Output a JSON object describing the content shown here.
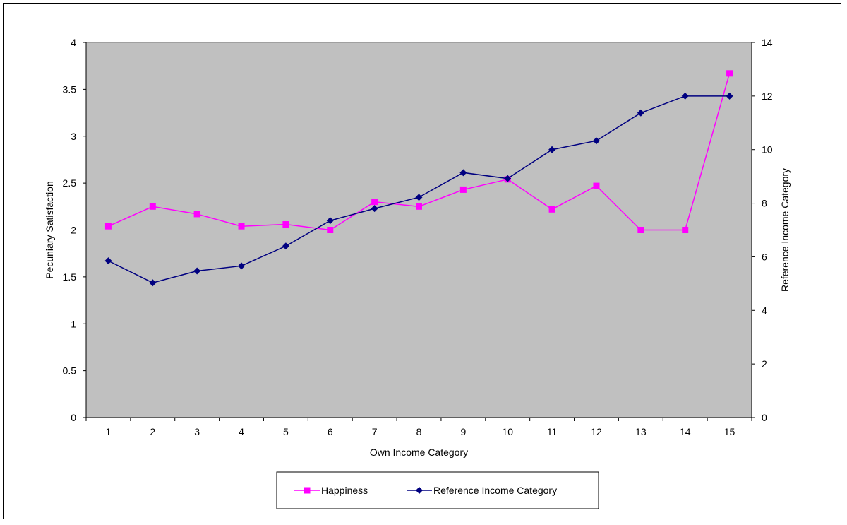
{
  "chart_data": {
    "type": "line",
    "title": "",
    "xlabel": "Own Income Category",
    "ylabel": "Pecuniary Satisfaction",
    "y2label": "Reference Income Category",
    "categories": [
      "1",
      "2",
      "3",
      "4",
      "5",
      "6",
      "7",
      "8",
      "9",
      "10",
      "11",
      "12",
      "13",
      "14",
      "15"
    ],
    "ylim": [
      0,
      4
    ],
    "yticks": [
      "0",
      "0.5",
      "1",
      "1.5",
      "2",
      "2.5",
      "3",
      "3.5",
      "4"
    ],
    "y2lim": [
      0,
      14
    ],
    "y2ticks": [
      "0",
      "2",
      "4",
      "6",
      "8",
      "10",
      "12",
      "14"
    ],
    "grid": false,
    "plot_background": "#c0c0c0",
    "legend_position": "bottom",
    "series": [
      {
        "name": "Happiness",
        "axis": "left",
        "color": "#ff00ff",
        "marker": "square",
        "values": [
          2.04,
          2.25,
          2.17,
          2.04,
          2.06,
          2.0,
          2.3,
          2.25,
          2.43,
          2.54,
          2.22,
          2.47,
          2.0,
          2.0,
          3.67
        ]
      },
      {
        "name": "Reference Income Category",
        "axis": "right",
        "color": "#000080",
        "marker": "diamond",
        "values": [
          5.85,
          5.03,
          5.47,
          5.66,
          6.4,
          7.35,
          7.8,
          8.22,
          9.14,
          8.92,
          10.0,
          10.33,
          11.37,
          12.0,
          12.0
        ]
      }
    ]
  }
}
